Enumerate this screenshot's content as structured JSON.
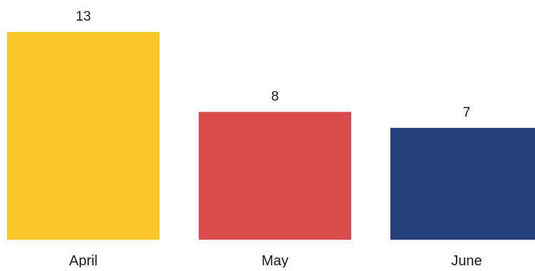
{
  "chart_data": {
    "type": "bar",
    "categories": [
      "April",
      "May",
      "June"
    ],
    "values": [
      13,
      8,
      7
    ],
    "data_labels": [
      "13",
      "8",
      "7"
    ],
    "colors": [
      "#FBC62C",
      "#D94A4C",
      "#263F7D"
    ],
    "title": "",
    "xlabel": "",
    "ylabel": "",
    "ylim": [
      0,
      13
    ],
    "grid": false,
    "legend": "none"
  }
}
